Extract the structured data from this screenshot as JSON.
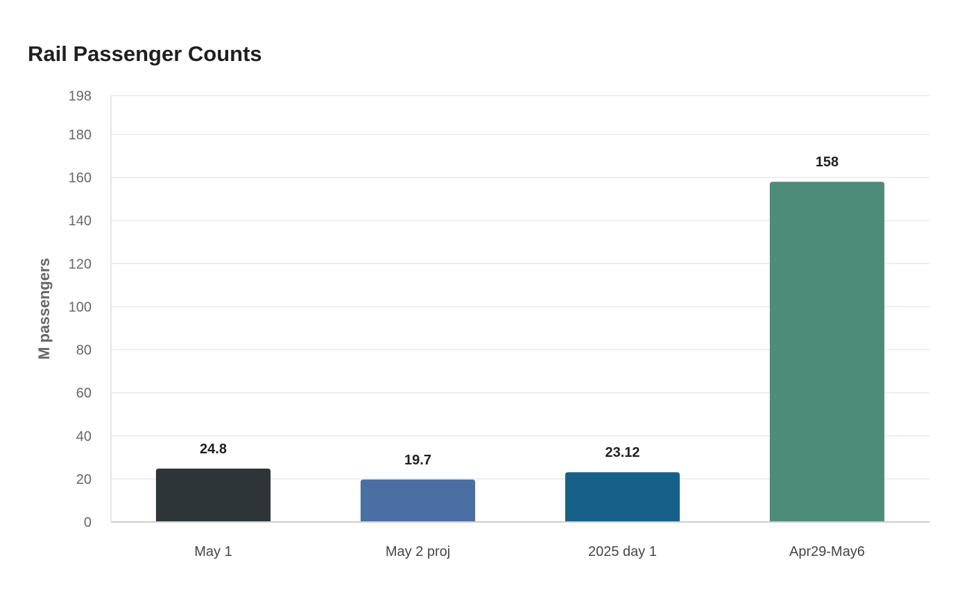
{
  "chart_data": {
    "type": "bar",
    "title": "Rail Passenger Counts",
    "xlabel": "",
    "ylabel": "M passengers",
    "ylim": [
      0,
      198
    ],
    "yticks": [
      0,
      20,
      40,
      60,
      80,
      100,
      120,
      140,
      160,
      180,
      198
    ],
    "categories": [
      "May 1",
      "May 2 proj",
      "2025 day 1",
      "Apr29-May6"
    ],
    "values": [
      24.8,
      19.7,
      23.12,
      158
    ],
    "value_labels": [
      "24.8",
      "19.7",
      "23.12",
      "158"
    ],
    "colors": [
      "#2e3538",
      "#4a6fa3",
      "#176188",
      "#4e8c7a"
    ],
    "grid": true,
    "legend": "none"
  }
}
